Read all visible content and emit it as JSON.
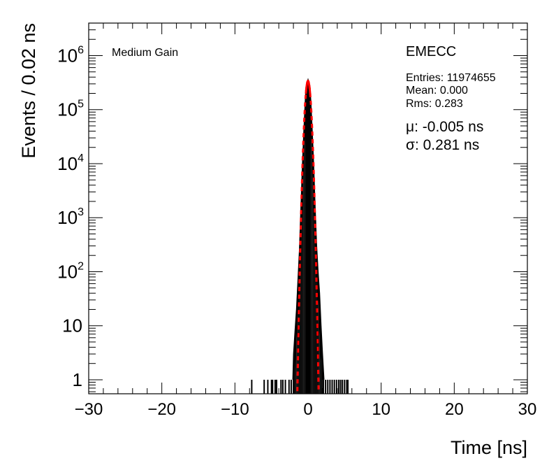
{
  "chart_data": {
    "type": "histogram",
    "xlabel": "Time [ns]",
    "ylabel": "Events / 0.02 ns",
    "xlim": [
      -30,
      30
    ],
    "ylim": [
      0.55,
      4000000
    ],
    "yscale": "log",
    "grid": false,
    "x_ticks": [
      "−30",
      "−20",
      "−10",
      "0",
      "10",
      "20",
      "30"
    ],
    "y_ticks": [
      {
        "value": 1,
        "label": "1"
      },
      {
        "value": 10,
        "label": "10"
      },
      {
        "value": 100,
        "base": "10",
        "exp": "2"
      },
      {
        "value": 1000,
        "base": "10",
        "exp": "3"
      },
      {
        "value": 10000,
        "base": "10",
        "exp": "4"
      },
      {
        "value": 100000,
        "base": "10",
        "exp": "5"
      },
      {
        "value": 1000000,
        "base": "10",
        "exp": "6"
      }
    ],
    "series": [
      {
        "color": "#000000",
        "style": "histogram",
        "points": [
          [
            -7.7,
            1
          ],
          [
            -6.0,
            1
          ],
          [
            -5.5,
            1
          ],
          [
            -5.0,
            1
          ],
          [
            -4.85,
            1
          ],
          [
            -4.5,
            1
          ],
          [
            -4.3,
            1
          ],
          [
            -3.7,
            1
          ],
          [
            -3.45,
            1
          ],
          [
            -3.1,
            1
          ],
          [
            -2.6,
            1
          ],
          [
            -2.3,
            1
          ],
          [
            -2.0,
            1
          ],
          [
            -1.9,
            3
          ],
          [
            -1.7,
            8
          ],
          [
            -1.5,
            20
          ],
          [
            -1.3,
            70
          ],
          [
            -1.1,
            250
          ],
          [
            -0.9,
            1500
          ],
          [
            -0.7,
            9000
          ],
          [
            -0.5,
            40000
          ],
          [
            -0.3,
            150000
          ],
          [
            -0.15,
            280000
          ],
          [
            0.0,
            330000
          ],
          [
            0.15,
            280000
          ],
          [
            0.3,
            150000
          ],
          [
            0.5,
            40000
          ],
          [
            0.7,
            9000
          ],
          [
            0.9,
            1500
          ],
          [
            1.1,
            300
          ],
          [
            1.3,
            100
          ],
          [
            1.5,
            40
          ],
          [
            1.7,
            10
          ],
          [
            1.9,
            3
          ],
          [
            2.1,
            1
          ],
          [
            2.4,
            1
          ],
          [
            2.7,
            1
          ],
          [
            3.0,
            1
          ],
          [
            3.3,
            1
          ],
          [
            3.6,
            1
          ],
          [
            3.9,
            1
          ],
          [
            4.2,
            1
          ],
          [
            4.45,
            1
          ],
          [
            4.7,
            1
          ],
          [
            5.0,
            1
          ],
          [
            5.3,
            1
          ],
          [
            5.45,
            1
          ]
        ]
      },
      {
        "color": "#ff0000",
        "style": "gaussian-fit",
        "mu": -0.005,
        "sigma": 0.281,
        "peak": 340000,
        "fit_range": [
          -0.3,
          0.3
        ]
      }
    ],
    "annotations": {
      "label": "Medium Gain",
      "stats_title": "EMECC",
      "entries": "Entries: 11974655",
      "mean": "Mean: 0.000",
      "rms": "Rms: 0.283",
      "mu": "μ: -0.005 ns",
      "sigma": "σ: 0.281 ns"
    }
  }
}
